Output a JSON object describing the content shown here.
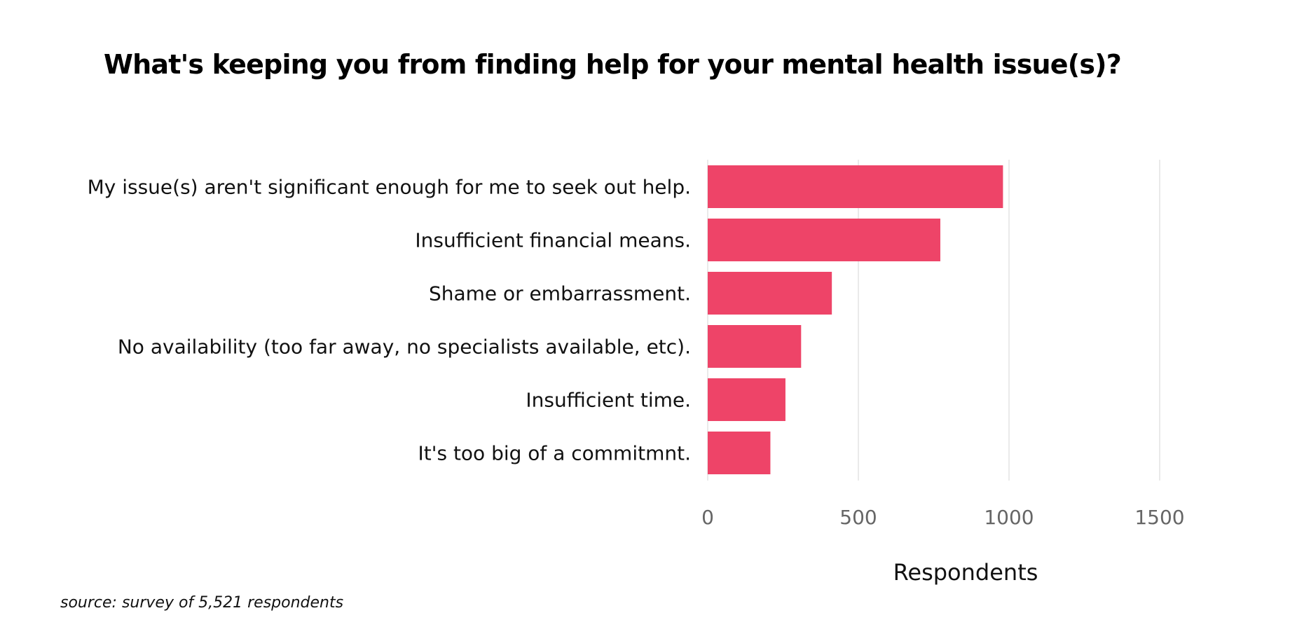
{
  "chart_data": {
    "type": "bar",
    "orientation": "horizontal",
    "title": "What's keeping you from finding help for your mental health issue(s)?",
    "categories": [
      "My issue(s) aren't significant enough for me to seek out help.",
      "Insufficient financial means.",
      "Shame or embarrassment.",
      "No availability (too far away, no specialists available, etc).",
      "Insufficient time.",
      "It's too big of a commitmnt."
    ],
    "values": [
      980,
      772,
      412,
      310,
      258,
      208
    ],
    "xlabel": "Respondents",
    "ylabel": "",
    "xlim": [
      0,
      1600
    ],
    "x_ticks": [
      0,
      500,
      1000,
      1500
    ],
    "x_tick_labels": [
      "0",
      "500",
      "1000",
      "1500"
    ],
    "grid": "vertical",
    "bar_color": "#ee4468",
    "grid_color": "#e4e4e4"
  },
  "footer": {
    "source": "source: survey of 5,521 respondents"
  }
}
